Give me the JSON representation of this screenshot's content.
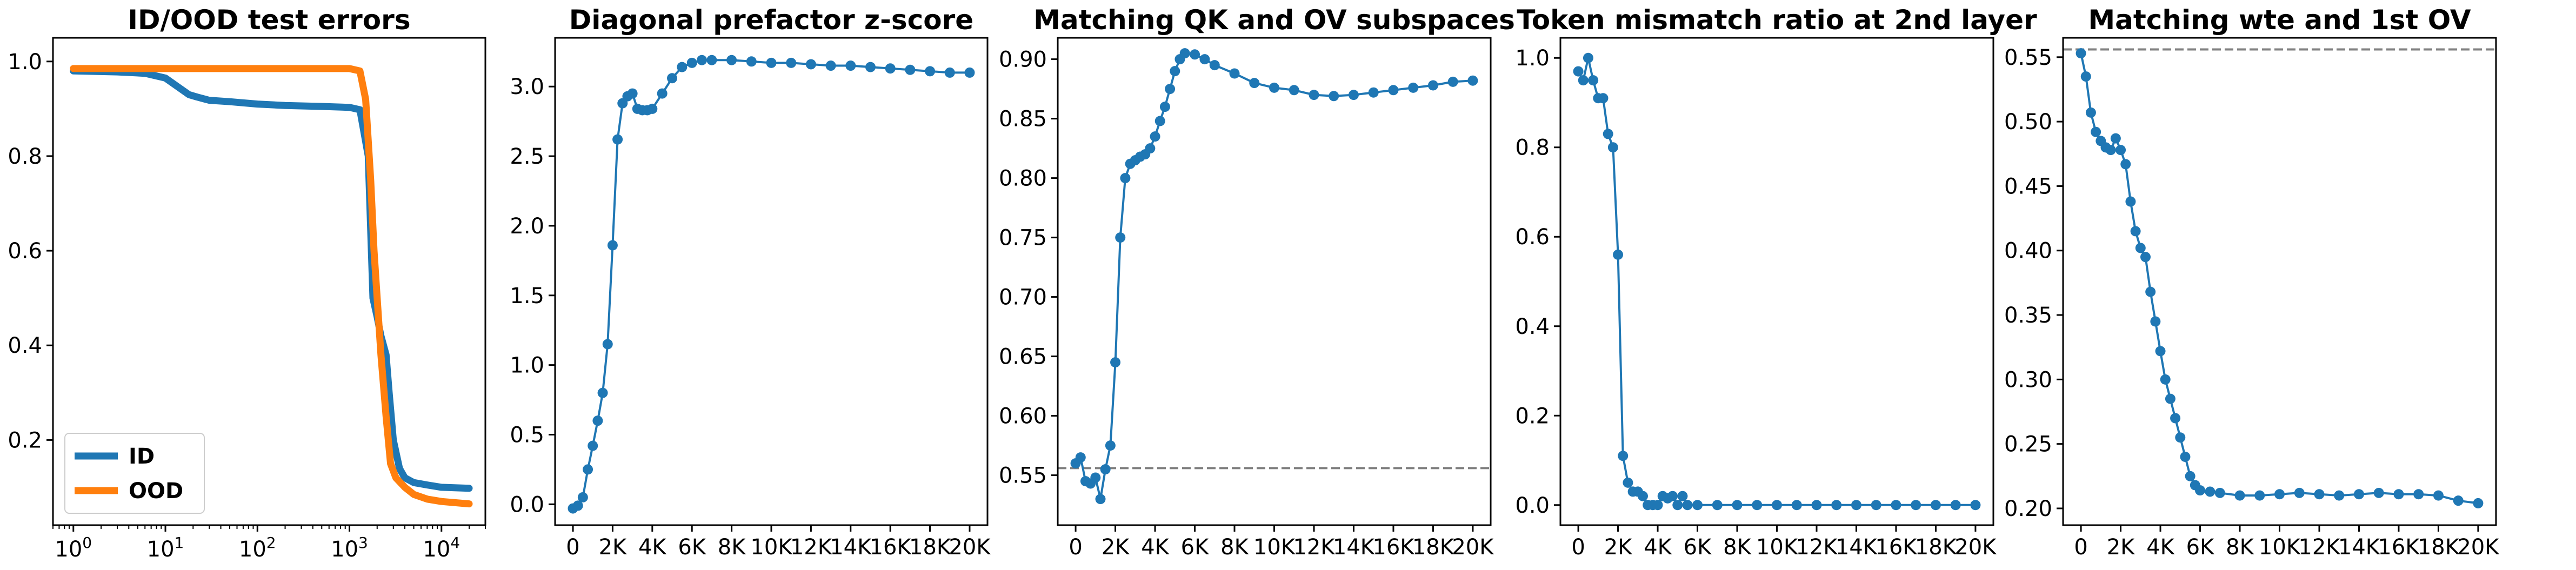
{
  "chart_data": [
    {
      "type": "line",
      "title": "ID/OOD test errors",
      "xscale": "log",
      "xlim": [
        0.6,
        30000
      ],
      "ylim": [
        0.02,
        1.05
      ],
      "x_ticks": [
        1,
        10,
        100,
        1000,
        10000
      ],
      "x_tick_labels": [
        "10^0",
        "10^1",
        "10^2",
        "10^3",
        "10^4"
      ],
      "y_ticks": [
        0.2,
        0.4,
        0.6,
        0.8,
        1.0
      ],
      "y_tick_labels": [
        "0.2",
        "0.4",
        "0.6",
        "0.8",
        "1.0"
      ],
      "legend": "lower-left",
      "grid": false,
      "series": [
        {
          "name": "ID",
          "color": "#1f77b4",
          "x": [
            1,
            3,
            6,
            10,
            14,
            18,
            22,
            30,
            50,
            100,
            200,
            500,
            1000,
            1300,
            1600,
            1800,
            2000,
            2200,
            2500,
            2700,
            3000,
            3500,
            4000,
            5000,
            7000,
            10000,
            20000
          ],
          "y": [
            0.98,
            0.978,
            0.975,
            0.965,
            0.945,
            0.93,
            0.925,
            0.918,
            0.915,
            0.91,
            0.907,
            0.905,
            0.903,
            0.898,
            0.8,
            0.5,
            0.46,
            0.42,
            0.38,
            0.3,
            0.2,
            0.14,
            0.12,
            0.11,
            0.105,
            0.1,
            0.098
          ]
        },
        {
          "name": "OOD",
          "color": "#ff7f0e",
          "x": [
            1,
            10,
            100,
            1000,
            1300,
            1500,
            1700,
            1850,
            2000,
            2200,
            2500,
            2800,
            3200,
            4000,
            5000,
            7000,
            10000,
            20000
          ],
          "y": [
            0.985,
            0.985,
            0.985,
            0.985,
            0.98,
            0.92,
            0.75,
            0.6,
            0.5,
            0.38,
            0.25,
            0.15,
            0.12,
            0.1,
            0.085,
            0.075,
            0.07,
            0.065
          ]
        }
      ]
    },
    {
      "type": "line",
      "title": "Diagonal prefactor z-score",
      "xlim": [
        -900,
        20900
      ],
      "ylim": [
        -0.15,
        3.35
      ],
      "x_ticks": [
        0,
        2000,
        4000,
        6000,
        8000,
        10000,
        12000,
        14000,
        16000,
        18000,
        20000
      ],
      "x_tick_labels": [
        "0",
        "2K",
        "4K",
        "6K",
        "8K",
        "10K",
        "12K",
        "14K",
        "16K",
        "18K",
        "20K"
      ],
      "y_ticks": [
        0,
        0.5,
        1.0,
        1.5,
        2.0,
        2.5,
        3.0
      ],
      "y_tick_labels": [
        "0.0",
        "0.5",
        "1.0",
        "1.5",
        "2.0",
        "2.5",
        "3.0"
      ],
      "markers": true,
      "series": [
        {
          "color": "#1f77b4",
          "x": [
            0,
            250,
            500,
            750,
            1000,
            1250,
            1500,
            1750,
            2000,
            2250,
            2500,
            2750,
            3000,
            3250,
            3500,
            3750,
            4000,
            4500,
            5000,
            5500,
            6000,
            6500,
            7000,
            8000,
            9000,
            10000,
            11000,
            12000,
            13000,
            14000,
            15000,
            16000,
            17000,
            18000,
            19000,
            20000
          ],
          "y": [
            -0.03,
            -0.01,
            0.05,
            0.25,
            0.42,
            0.6,
            0.8,
            1.15,
            1.86,
            2.62,
            2.88,
            2.93,
            2.95,
            2.84,
            2.83,
            2.83,
            2.84,
            2.95,
            3.06,
            3.14,
            3.17,
            3.19,
            3.19,
            3.19,
            3.18,
            3.17,
            3.17,
            3.16,
            3.15,
            3.15,
            3.14,
            3.13,
            3.12,
            3.11,
            3.1,
            3.1
          ]
        }
      ]
    },
    {
      "type": "line",
      "title": "Matching QK and OV subspaces",
      "xlim": [
        -900,
        20900
      ],
      "ylim": [
        0.508,
        0.918
      ],
      "x_ticks": [
        0,
        2000,
        4000,
        6000,
        8000,
        10000,
        12000,
        14000,
        16000,
        18000,
        20000
      ],
      "x_tick_labels": [
        "0",
        "2K",
        "4K",
        "6K",
        "8K",
        "10K",
        "12K",
        "14K",
        "16K",
        "18K",
        "20K"
      ],
      "y_ticks": [
        0.55,
        0.6,
        0.65,
        0.7,
        0.75,
        0.8,
        0.85,
        0.9
      ],
      "y_tick_labels": [
        "0.55",
        "0.60",
        "0.65",
        "0.70",
        "0.75",
        "0.80",
        "0.85",
        "0.90"
      ],
      "markers": true,
      "reference_line": 0.556,
      "series": [
        {
          "color": "#1f77b4",
          "x": [
            0,
            250,
            500,
            750,
            1000,
            1250,
            1500,
            1750,
            2000,
            2250,
            2500,
            2750,
            3000,
            3250,
            3500,
            3750,
            4000,
            4250,
            4500,
            4750,
            5000,
            5250,
            5500,
            6000,
            6500,
            7000,
            8000,
            9000,
            10000,
            11000,
            12000,
            13000,
            14000,
            15000,
            16000,
            17000,
            18000,
            19000,
            20000
          ],
          "y": [
            0.56,
            0.565,
            0.545,
            0.543,
            0.548,
            0.53,
            0.555,
            0.575,
            0.645,
            0.75,
            0.8,
            0.812,
            0.815,
            0.818,
            0.82,
            0.825,
            0.835,
            0.848,
            0.86,
            0.875,
            0.89,
            0.9,
            0.905,
            0.904,
            0.9,
            0.895,
            0.888,
            0.88,
            0.876,
            0.874,
            0.87,
            0.869,
            0.87,
            0.872,
            0.874,
            0.876,
            0.878,
            0.881,
            0.882
          ]
        }
      ]
    },
    {
      "type": "line",
      "title": "Token mismatch ratio at 2nd layer",
      "xlim": [
        -900,
        20900
      ],
      "ylim": [
        -0.045,
        1.045
      ],
      "x_ticks": [
        0,
        2000,
        4000,
        6000,
        8000,
        10000,
        12000,
        14000,
        16000,
        18000,
        20000
      ],
      "x_tick_labels": [
        "0",
        "2K",
        "4K",
        "6K",
        "8K",
        "10K",
        "12K",
        "14K",
        "16K",
        "18K",
        "20K"
      ],
      "y_ticks": [
        0,
        0.2,
        0.4,
        0.6,
        0.8,
        1.0
      ],
      "y_tick_labels": [
        "0.0",
        "0.2",
        "0.4",
        "0.6",
        "0.8",
        "1.0"
      ],
      "markers": true,
      "series": [
        {
          "color": "#1f77b4",
          "x": [
            0,
            250,
            500,
            750,
            1000,
            1250,
            1500,
            1750,
            2000,
            2250,
            2500,
            2750,
            3000,
            3250,
            3500,
            3750,
            4000,
            4250,
            4500,
            4750,
            5000,
            5250,
            5500,
            6000,
            7000,
            8000,
            9000,
            10000,
            11000,
            12000,
            13000,
            14000,
            15000,
            16000,
            17000,
            18000,
            19000,
            20000
          ],
          "y": [
            0.97,
            0.95,
            1.0,
            0.95,
            0.91,
            0.91,
            0.83,
            0.8,
            0.56,
            0.11,
            0.05,
            0.03,
            0.03,
            0.02,
            0.0,
            0.0,
            0.0,
            0.02,
            0.015,
            0.02,
            0.0,
            0.02,
            0.0,
            0.0,
            0.0,
            0.0,
            0.0,
            0.0,
            0.0,
            0.0,
            0.0,
            0.0,
            0.0,
            0.0,
            0.0,
            0.0,
            0.0,
            0.0
          ]
        }
      ]
    },
    {
      "type": "line",
      "title": "Matching wte and 1st OV",
      "xlim": [
        -900,
        20900
      ],
      "ylim": [
        0.187,
        0.565
      ],
      "x_ticks": [
        0,
        2000,
        4000,
        6000,
        8000,
        10000,
        12000,
        14000,
        16000,
        18000,
        20000
      ],
      "x_tick_labels": [
        "0",
        "2K",
        "4K",
        "6K",
        "8K",
        "10K",
        "12K",
        "14K",
        "16K",
        "18K",
        "20K"
      ],
      "y_ticks": [
        0.2,
        0.25,
        0.3,
        0.35,
        0.4,
        0.45,
        0.5,
        0.55
      ],
      "y_tick_labels": [
        "0.20",
        "0.25",
        "0.30",
        "0.35",
        "0.40",
        "0.45",
        "0.50",
        "0.55"
      ],
      "markers": true,
      "reference_line": 0.556,
      "series": [
        {
          "color": "#1f77b4",
          "x": [
            0,
            250,
            500,
            750,
            1000,
            1250,
            1500,
            1750,
            2000,
            2250,
            2500,
            2750,
            3000,
            3250,
            3500,
            3750,
            4000,
            4250,
            4500,
            4750,
            5000,
            5250,
            5500,
            5750,
            6000,
            6500,
            7000,
            8000,
            9000,
            10000,
            11000,
            12000,
            13000,
            14000,
            15000,
            16000,
            17000,
            18000,
            19000,
            20000
          ],
          "y": [
            0.553,
            0.535,
            0.507,
            0.492,
            0.485,
            0.48,
            0.478,
            0.487,
            0.478,
            0.467,
            0.438,
            0.415,
            0.402,
            0.395,
            0.368,
            0.345,
            0.322,
            0.3,
            0.285,
            0.27,
            0.255,
            0.24,
            0.225,
            0.218,
            0.214,
            0.213,
            0.212,
            0.21,
            0.21,
            0.211,
            0.212,
            0.211,
            0.21,
            0.211,
            0.212,
            0.211,
            0.211,
            0.21,
            0.206,
            0.204
          ]
        }
      ]
    }
  ]
}
